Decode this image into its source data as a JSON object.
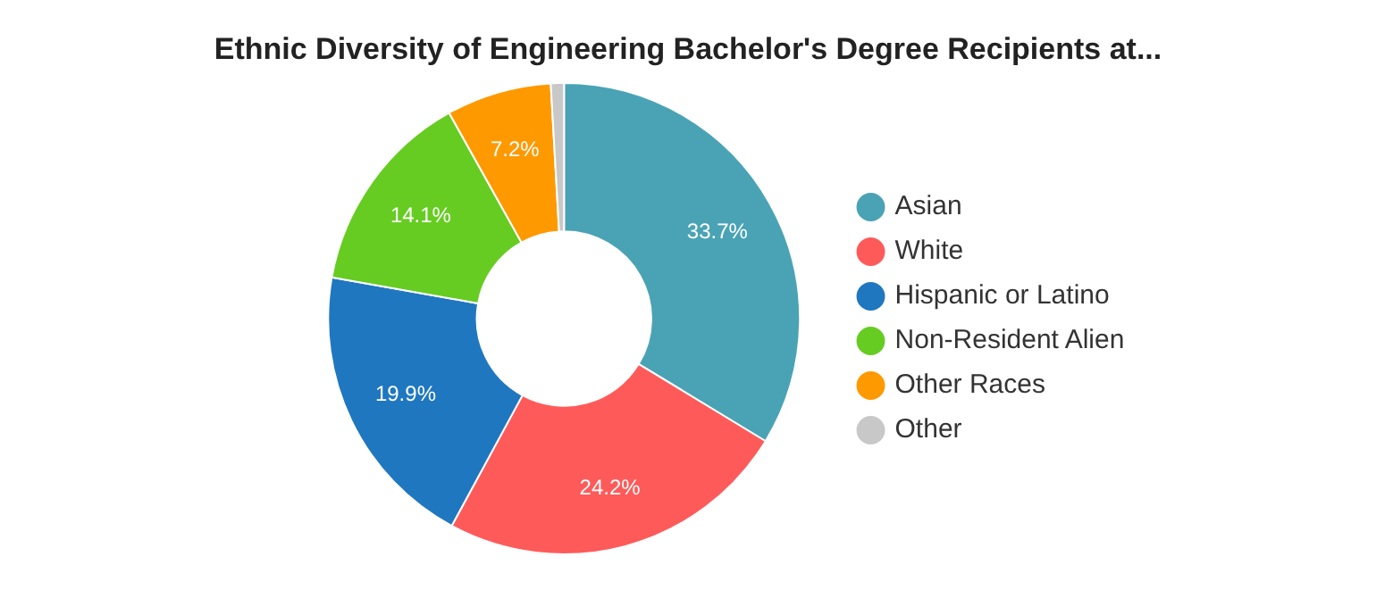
{
  "chart_data": {
    "type": "donut",
    "title": "Ethnic Diversity of Engineering Bachelor's Degree Recipients at...",
    "categories": [
      "Asian",
      "White",
      "Hispanic or Latino",
      "Non-Resident Alien",
      "Other Races",
      "Other"
    ],
    "values": [
      33.7,
      24.2,
      19.9,
      14.1,
      7.2,
      0.9
    ],
    "colors": [
      "#4aa3b5",
      "#ff5a5a",
      "#1f77c0",
      "#66cc22",
      "#ff9900",
      "#c8c8c8"
    ],
    "value_labels": [
      "33.7%",
      "24.2%",
      "19.9%",
      "14.1%",
      "7.2%",
      null
    ],
    "legend": "right"
  }
}
